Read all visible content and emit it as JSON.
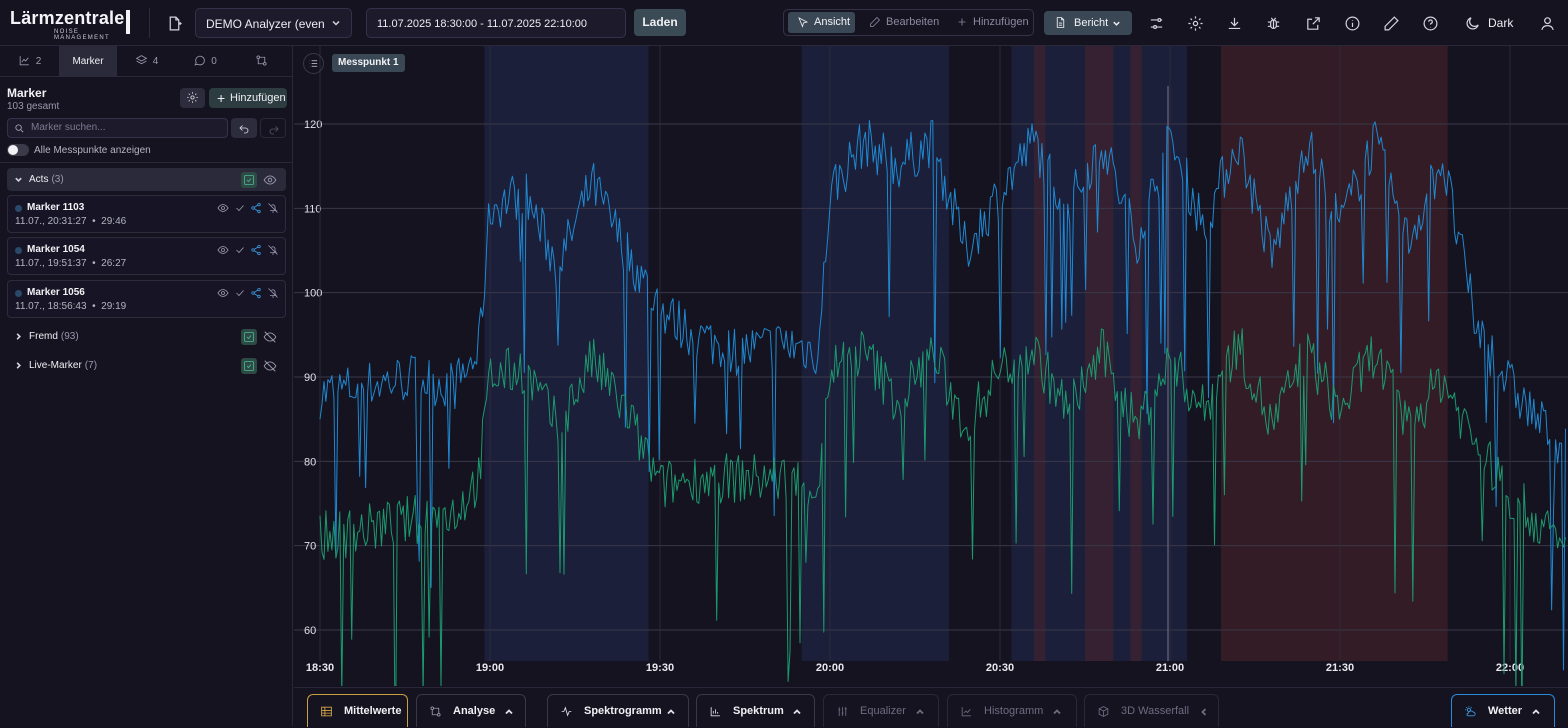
{
  "header": {
    "logo_title": "Lärmzentrale",
    "logo_sub": "NOISE MANAGEMENT",
    "analyzer": "DEMO Analyzer (even",
    "date_range": "11.07.2025 18:30:00 - 11.07.2025 22:10:00",
    "load_label": "Laden",
    "modes": [
      "Ansicht",
      "Bearbeiten",
      "Hinzufügen"
    ],
    "report_label": "Bericht",
    "theme_label": "Dark"
  },
  "sidebar": {
    "tabs": [
      {
        "label": "2",
        "icon": "chart-icon"
      },
      {
        "label": "Marker",
        "icon": ""
      },
      {
        "label": "4",
        "icon": "layers-icon"
      },
      {
        "label": "0",
        "icon": "comment-icon"
      },
      {
        "label": "",
        "icon": "git-compare-icon"
      }
    ],
    "title": "Marker",
    "count_text": "103 gesamt",
    "add_label": "Hinzufügen",
    "search_placeholder": "Marker suchen...",
    "toggle_label": "Alle Messpunkte anzeigen",
    "groups": [
      {
        "name": "Acts",
        "count": "(3)"
      },
      {
        "name": "Fremd",
        "count": "(93)"
      },
      {
        "name": "Live-Marker",
        "count": "(7)"
      }
    ],
    "markers": [
      {
        "name": "Marker 1103",
        "time": "11.07., 20:31:27",
        "duration": "29:46"
      },
      {
        "name": "Marker 1054",
        "time": "11.07., 19:51:37",
        "duration": "26:27"
      },
      {
        "name": "Marker 1056",
        "time": "11.07., 18:56:43",
        "duration": "29:19"
      }
    ]
  },
  "chart": {
    "badge": "Messpunkt 1"
  },
  "chart_data": {
    "type": "line",
    "x_ticks": [
      "18:30",
      "19:00",
      "19:30",
      "20:00",
      "20:30",
      "21:00",
      "21:30",
      "22:00"
    ],
    "y_ticks": [
      60,
      70,
      80,
      90,
      100,
      110,
      120
    ],
    "ylim": [
      57,
      127
    ],
    "xlim": [
      "18:30",
      "22:10"
    ],
    "grid": true,
    "series": [
      {
        "color": "#1f88d0",
        "points": [
          [
            "18:30",
            88
          ],
          [
            "18:38",
            89
          ],
          [
            "18:46",
            90
          ],
          [
            "18:54",
            89
          ],
          [
            "18:58",
            93
          ],
          [
            "19:00",
            110
          ],
          [
            "19:06",
            112
          ],
          [
            "19:12",
            103
          ],
          [
            "19:18",
            113
          ],
          [
            "19:24",
            105
          ],
          [
            "19:30",
            98
          ],
          [
            "19:36",
            95
          ],
          [
            "19:44",
            93
          ],
          [
            "19:52",
            94
          ],
          [
            "19:58",
            93
          ],
          [
            "20:00",
            112
          ],
          [
            "20:06",
            118
          ],
          [
            "20:12",
            115
          ],
          [
            "20:18",
            118
          ],
          [
            "20:24",
            105
          ],
          [
            "20:30",
            112
          ],
          [
            "20:36",
            118
          ],
          [
            "20:42",
            110
          ],
          [
            "20:48",
            118
          ],
          [
            "20:54",
            106
          ],
          [
            "21:00",
            118
          ],
          [
            "21:06",
            108
          ],
          [
            "21:12",
            118
          ],
          [
            "21:18",
            104
          ],
          [
            "21:24",
            118
          ],
          [
            "21:30",
            108
          ],
          [
            "21:36",
            118
          ],
          [
            "21:42",
            106
          ],
          [
            "21:48",
            116
          ],
          [
            "21:54",
            96
          ],
          [
            "22:00",
            89
          ],
          [
            "22:06",
            84
          ],
          [
            "22:10",
            82
          ]
        ]
      },
      {
        "color": "#1c9a6e",
        "points": [
          [
            "18:30",
            71
          ],
          [
            "18:38",
            72
          ],
          [
            "18:46",
            73
          ],
          [
            "18:54",
            74
          ],
          [
            "18:58",
            78
          ],
          [
            "19:00",
            90
          ],
          [
            "19:06",
            91
          ],
          [
            "19:12",
            84
          ],
          [
            "19:18",
            92
          ],
          [
            "19:24",
            86
          ],
          [
            "19:30",
            77
          ],
          [
            "19:36",
            78
          ],
          [
            "19:44",
            78
          ],
          [
            "19:52",
            78
          ],
          [
            "19:58",
            77
          ],
          [
            "20:00",
            91
          ],
          [
            "20:06",
            93
          ],
          [
            "20:12",
            87
          ],
          [
            "20:18",
            93
          ],
          [
            "20:24",
            84
          ],
          [
            "20:30",
            91
          ],
          [
            "20:36",
            93
          ],
          [
            "20:42",
            86
          ],
          [
            "20:48",
            93
          ],
          [
            "20:54",
            84
          ],
          [
            "21:00",
            92
          ],
          [
            "21:06",
            86
          ],
          [
            "21:12",
            94
          ],
          [
            "21:18",
            84
          ],
          [
            "21:24",
            93
          ],
          [
            "21:30",
            86
          ],
          [
            "21:36",
            93
          ],
          [
            "21:42",
            84
          ],
          [
            "21:48",
            90
          ],
          [
            "21:54",
            82
          ],
          [
            "22:00",
            76
          ],
          [
            "22:06",
            72
          ],
          [
            "22:10",
            69
          ]
        ]
      }
    ],
    "bands": [
      {
        "from": "18:59",
        "to": "19:28",
        "color": "#1c2240"
      },
      {
        "from": "19:55",
        "to": "20:21",
        "color": "#1c2240"
      },
      {
        "from": "20:32",
        "to": "21:03",
        "color": "#1c2240"
      },
      {
        "from": "20:36",
        "to": "20:38",
        "color": "#3a2230"
      },
      {
        "from": "20:45",
        "to": "20:50",
        "color": "#3a2230"
      },
      {
        "from": "20:53",
        "to": "20:55",
        "color": "#3a2230"
      },
      {
        "from": "21:09",
        "to": "21:49",
        "color": "#3a1e28"
      }
    ]
  },
  "bottom_tabs": [
    {
      "label": "Mittelwerte",
      "active": true,
      "icon": "table-icon"
    },
    {
      "label": "Analyse",
      "active": true,
      "icon": "compare-icon"
    },
    {
      "label": "Spektrogramm",
      "active": true,
      "icon": "activity-icon"
    },
    {
      "label": "Spektrum",
      "active": true,
      "icon": "bar-chart-icon"
    },
    {
      "label": "Equalizer",
      "active": false,
      "icon": "sliders-icon"
    },
    {
      "label": "Histogramm",
      "active": false,
      "icon": "line-chart-icon"
    },
    {
      "label": "3D Wasserfall",
      "active": false,
      "icon": "cube-icon"
    },
    {
      "label": "Wetter",
      "active": true,
      "icon": "weather-icon"
    }
  ],
  "colors": {
    "accent": "#3a4856",
    "series_blue": "#1f88d0",
    "series_green": "#1c9a6e",
    "wetter_border": "#2a8ad8",
    "mittelwerte_border": "#c8a040"
  }
}
